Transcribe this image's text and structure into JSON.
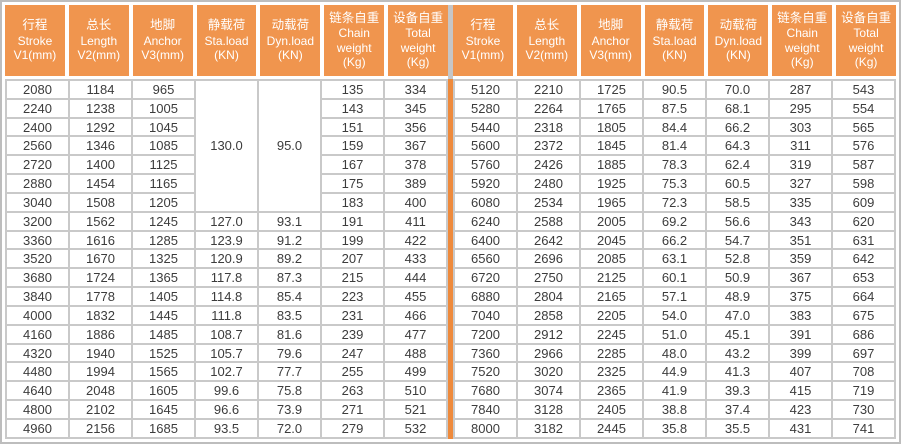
{
  "colors": {
    "header_bg": "#F0954E",
    "divider_orange": "#EE8A3C",
    "grid_border": "#C9C9C9",
    "outer_border": "#BDBDBD",
    "header_divider_gray": "#C6C6C6",
    "cell_text": "#3C3C3C",
    "header_text": "#FFFFFF"
  },
  "columns": [
    {
      "id": "stroke",
      "lines": [
        "行程",
        "Stroke",
        "V1(mm)"
      ]
    },
    {
      "id": "length",
      "lines": [
        "总长",
        "Length",
        "V2(mm)"
      ]
    },
    {
      "id": "anchor",
      "lines": [
        "地脚",
        "Anchor",
        "V3(mm)"
      ]
    },
    {
      "id": "static-load",
      "lines": [
        "静载荷",
        "Sta.load",
        "(KN)"
      ]
    },
    {
      "id": "dynamic-load",
      "lines": [
        "动载荷",
        "Dyn.load",
        "(KN)"
      ]
    },
    {
      "id": "chain-weight",
      "lines": [
        "链条自重",
        "Chain",
        "weight",
        "(Kg)"
      ]
    },
    {
      "id": "total-weight",
      "lines": [
        "设备自重",
        "Total",
        "weight",
        "(Kg)"
      ]
    }
  ],
  "left_table": {
    "merged_cells": {
      "sta_load": "130.0",
      "dyn_load": "95.0",
      "row_span": 7
    },
    "rows": [
      [
        "2080",
        "1184",
        "965",
        null,
        null,
        "135",
        "334"
      ],
      [
        "2240",
        "1238",
        "1005",
        null,
        null,
        "143",
        "345"
      ],
      [
        "2400",
        "1292",
        "1045",
        null,
        null,
        "151",
        "356"
      ],
      [
        "2560",
        "1346",
        "1085",
        null,
        null,
        "159",
        "367"
      ],
      [
        "2720",
        "1400",
        "1125",
        null,
        null,
        "167",
        "378"
      ],
      [
        "2880",
        "1454",
        "1165",
        null,
        null,
        "175",
        "389"
      ],
      [
        "3040",
        "1508",
        "1205",
        null,
        null,
        "183",
        "400"
      ],
      [
        "3200",
        "1562",
        "1245",
        "127.0",
        "93.1",
        "191",
        "411"
      ],
      [
        "3360",
        "1616",
        "1285",
        "123.9",
        "91.2",
        "199",
        "422"
      ],
      [
        "3520",
        "1670",
        "1325",
        "120.9",
        "89.2",
        "207",
        "433"
      ],
      [
        "3680",
        "1724",
        "1365",
        "117.8",
        "87.3",
        "215",
        "444"
      ],
      [
        "3840",
        "1778",
        "1405",
        "114.8",
        "85.4",
        "223",
        "455"
      ],
      [
        "4000",
        "1832",
        "1445",
        "111.8",
        "83.5",
        "231",
        "466"
      ],
      [
        "4160",
        "1886",
        "1485",
        "108.7",
        "81.6",
        "239",
        "477"
      ],
      [
        "4320",
        "1940",
        "1525",
        "105.7",
        "79.6",
        "247",
        "488"
      ],
      [
        "4480",
        "1994",
        "1565",
        "102.7",
        "77.7",
        "255",
        "499"
      ],
      [
        "4640",
        "2048",
        "1605",
        "99.6",
        "75.8",
        "263",
        "510"
      ],
      [
        "4800",
        "2102",
        "1645",
        "96.6",
        "73.9",
        "271",
        "521"
      ],
      [
        "4960",
        "2156",
        "1685",
        "93.5",
        "72.0",
        "279",
        "532"
      ]
    ]
  },
  "right_table": {
    "rows": [
      [
        "5120",
        "2210",
        "1725",
        "90.5",
        "70.0",
        "287",
        "543"
      ],
      [
        "5280",
        "2264",
        "1765",
        "87.5",
        "68.1",
        "295",
        "554"
      ],
      [
        "5440",
        "2318",
        "1805",
        "84.4",
        "66.2",
        "303",
        "565"
      ],
      [
        "5600",
        "2372",
        "1845",
        "81.4",
        "64.3",
        "311",
        "576"
      ],
      [
        "5760",
        "2426",
        "1885",
        "78.3",
        "62.4",
        "319",
        "587"
      ],
      [
        "5920",
        "2480",
        "1925",
        "75.3",
        "60.5",
        "327",
        "598"
      ],
      [
        "6080",
        "2534",
        "1965",
        "72.3",
        "58.5",
        "335",
        "609"
      ],
      [
        "6240",
        "2588",
        "2005",
        "69.2",
        "56.6",
        "343",
        "620"
      ],
      [
        "6400",
        "2642",
        "2045",
        "66.2",
        "54.7",
        "351",
        "631"
      ],
      [
        "6560",
        "2696",
        "2085",
        "63.1",
        "52.8",
        "359",
        "642"
      ],
      [
        "6720",
        "2750",
        "2125",
        "60.1",
        "50.9",
        "367",
        "653"
      ],
      [
        "6880",
        "2804",
        "2165",
        "57.1",
        "48.9",
        "375",
        "664"
      ],
      [
        "7040",
        "2858",
        "2205",
        "54.0",
        "47.0",
        "383",
        "675"
      ],
      [
        "7200",
        "2912",
        "2245",
        "51.0",
        "45.1",
        "391",
        "686"
      ],
      [
        "7360",
        "2966",
        "2285",
        "48.0",
        "43.2",
        "399",
        "697"
      ],
      [
        "7520",
        "3020",
        "2325",
        "44.9",
        "41.3",
        "407",
        "708"
      ],
      [
        "7680",
        "3074",
        "2365",
        "41.9",
        "39.3",
        "415",
        "719"
      ],
      [
        "7840",
        "3128",
        "2405",
        "38.8",
        "37.4",
        "423",
        "730"
      ],
      [
        "8000",
        "3182",
        "2445",
        "35.8",
        "35.5",
        "431",
        "741"
      ]
    ]
  }
}
